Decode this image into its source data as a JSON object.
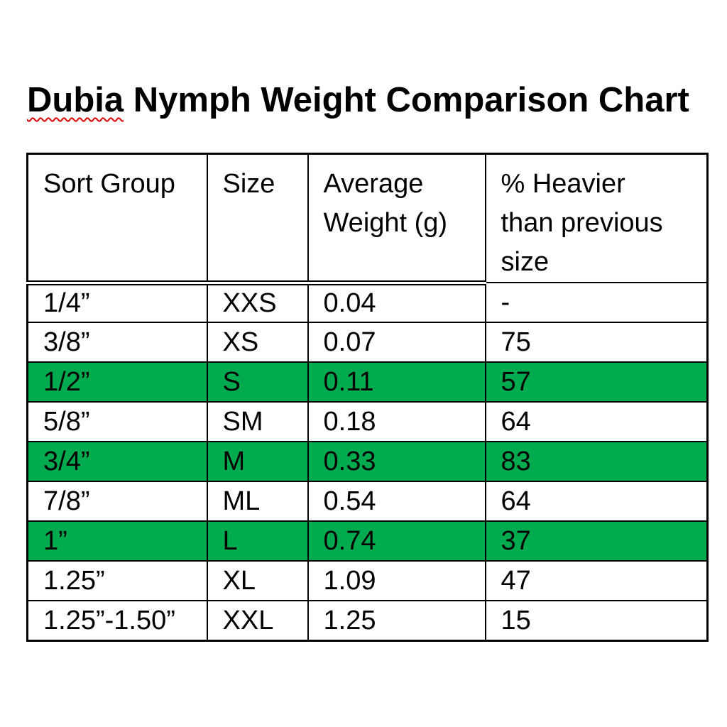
{
  "title": {
    "underlined_word": "Dubia",
    "rest": " Nymph Weight Comparison Chart",
    "full_text": "Dubia Nymph Weight Comparison Chart"
  },
  "colors": {
    "highlight_green": "#00AB50",
    "squiggle_red": "#E00000",
    "border_black": "#000000",
    "text_black": "#000000",
    "background_white": "#FFFFFF"
  },
  "table": {
    "headers": [
      {
        "label": "Sort Group",
        "lines": [
          "Sort Group"
        ]
      },
      {
        "label": "Size",
        "lines": [
          "Size"
        ]
      },
      {
        "label": "Average Weight (g)",
        "lines": [
          "Average",
          "Weight (g)"
        ]
      },
      {
        "label": "% Heavier than previous size",
        "lines": [
          "% Heavier",
          "than previous",
          "size"
        ]
      }
    ],
    "rows": [
      {
        "cells": [
          "1/4”",
          "XXS",
          "0.04",
          "-"
        ],
        "highlight": false
      },
      {
        "cells": [
          "3/8”",
          "XS",
          "0.07",
          "75"
        ],
        "highlight": false
      },
      {
        "cells": [
          "1/2”",
          "S",
          "0.11",
          "57"
        ],
        "highlight": true
      },
      {
        "cells": [
          "5/8”",
          "SM",
          "0.18",
          "64"
        ],
        "highlight": false
      },
      {
        "cells": [
          "3/4”",
          "M",
          "0.33",
          "83"
        ],
        "highlight": true
      },
      {
        "cells": [
          "7/8”",
          "ML",
          "0.54",
          "64"
        ],
        "highlight": false
      },
      {
        "cells": [
          "1”",
          "L",
          "0.74",
          "37"
        ],
        "highlight": true
      },
      {
        "cells": [
          "1.25”",
          "XL",
          "1.09",
          "47"
        ],
        "highlight": false
      },
      {
        "cells": [
          "1.25”-1.50”",
          "XXL",
          "1.25",
          "15"
        ],
        "highlight": false
      }
    ]
  }
}
